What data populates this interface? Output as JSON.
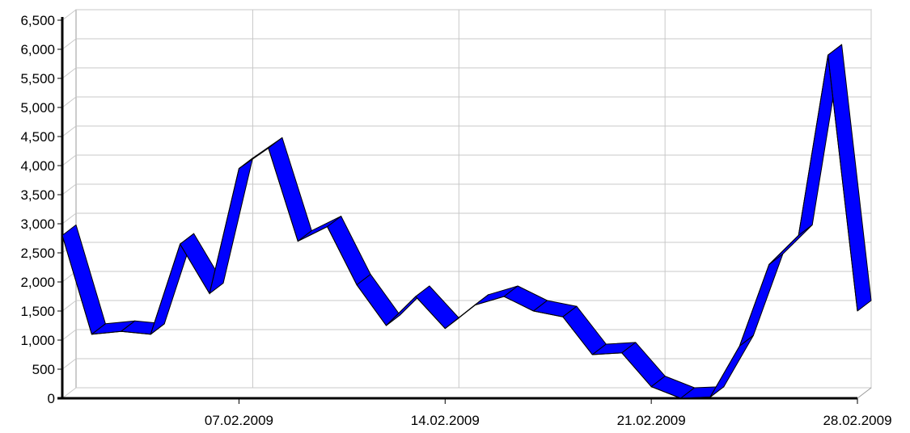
{
  "chart_data": {
    "type": "line",
    "style": "3d-ribbon",
    "x_dates": [
      "01.02.2009",
      "02.02.2009",
      "03.02.2009",
      "04.02.2009",
      "05.02.2009",
      "06.02.2009",
      "07.02.2009",
      "08.02.2009",
      "09.02.2009",
      "10.02.2009",
      "11.02.2009",
      "12.02.2009",
      "13.02.2009",
      "14.02.2009",
      "15.02.2009",
      "16.02.2009",
      "17.02.2009",
      "18.02.2009",
      "19.02.2009",
      "20.02.2009",
      "21.02.2009",
      "22.02.2009",
      "23.02.2009",
      "24.02.2009",
      "25.02.2009",
      "26.02.2009",
      "27.02.2009",
      "28.02.2009"
    ],
    "series": [
      {
        "color": "#0000ff",
        "values": [
          2800,
          1100,
          1150,
          1100,
          2650,
          1800,
          3950,
          4300,
          2700,
          2950,
          1950,
          1250,
          1750,
          1200,
          1600,
          1750,
          1500,
          1400,
          750,
          780,
          200,
          0,
          20,
          900,
          2300,
          2800,
          5900,
          1500
        ]
      }
    ],
    "x_ticks": [
      {
        "date": "07.02.2009",
        "label": "07.02.2009"
      },
      {
        "date": "14.02.2009",
        "label": "14.02.2009"
      },
      {
        "date": "21.02.2009",
        "label": "21.02.2009"
      },
      {
        "date": "28.02.2009",
        "label": "28.02.2009"
      }
    ],
    "y_ticks": [
      "0",
      "500",
      "1,000",
      "1,500",
      "2,000",
      "2,500",
      "3,000",
      "3,500",
      "4,000",
      "4,500",
      "5,000",
      "5,500",
      "6,000",
      "6,500"
    ],
    "ylim": [
      0,
      6500
    ],
    "grid": true,
    "legend": "none"
  }
}
